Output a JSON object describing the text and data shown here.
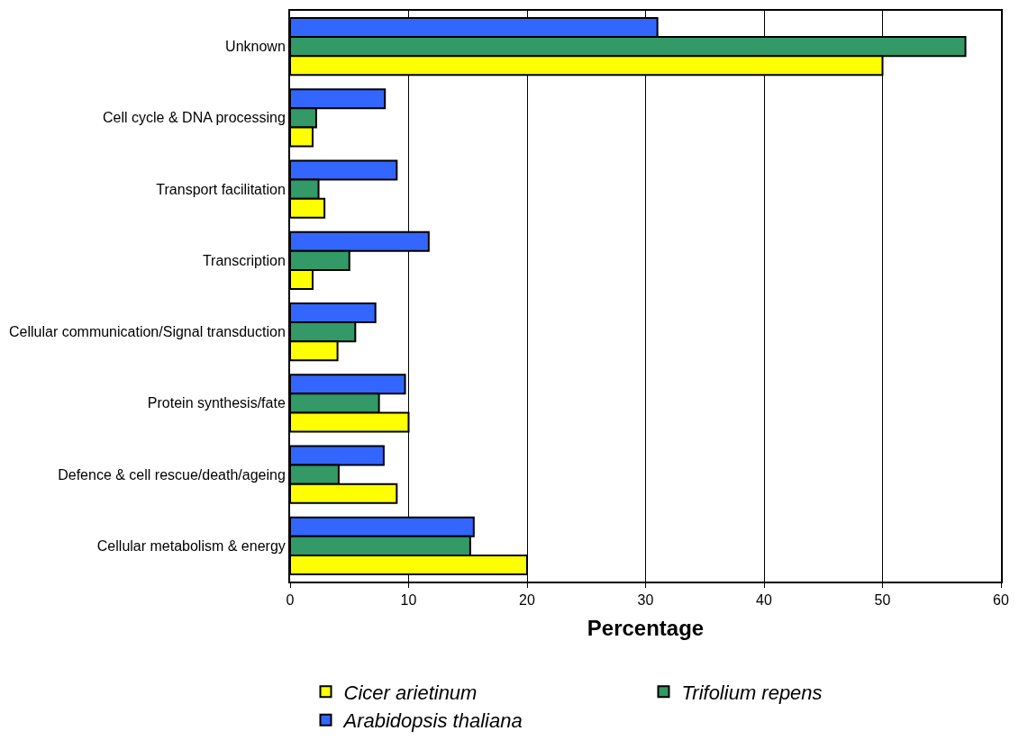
{
  "chart_data": {
    "type": "bar",
    "orientation": "horizontal",
    "xlabel": "Percentage",
    "categories": [
      "Unknown",
      "Cell cycle & DNA processing",
      "Transport facilitation",
      "Transcription",
      "Cellular communication/Signal transduction",
      "Protein synthesis/fate",
      "Defence & cell rescue/death/ageing",
      "Cellular metabolism & energy"
    ],
    "series": [
      {
        "name": "Cicer arietinum",
        "color": "#ffff00",
        "values": [
          50,
          1.9,
          2.9,
          1.9,
          4.0,
          10,
          9.0,
          20
        ]
      },
      {
        "name": "Trifolium repens",
        "color": "#339966",
        "values": [
          57,
          2.2,
          2.4,
          5.0,
          5.5,
          7.5,
          4.1,
          15.2
        ]
      },
      {
        "name": "Arabidopsis thaliana",
        "color": "#3366ff",
        "values": [
          31,
          8.0,
          9.0,
          11.7,
          7.2,
          9.7,
          7.9,
          15.5
        ]
      }
    ],
    "xlim": [
      0,
      60
    ],
    "xticks": [
      0,
      10,
      20,
      30,
      40,
      50,
      60
    ],
    "grid": "x",
    "legend": "bottom"
  }
}
